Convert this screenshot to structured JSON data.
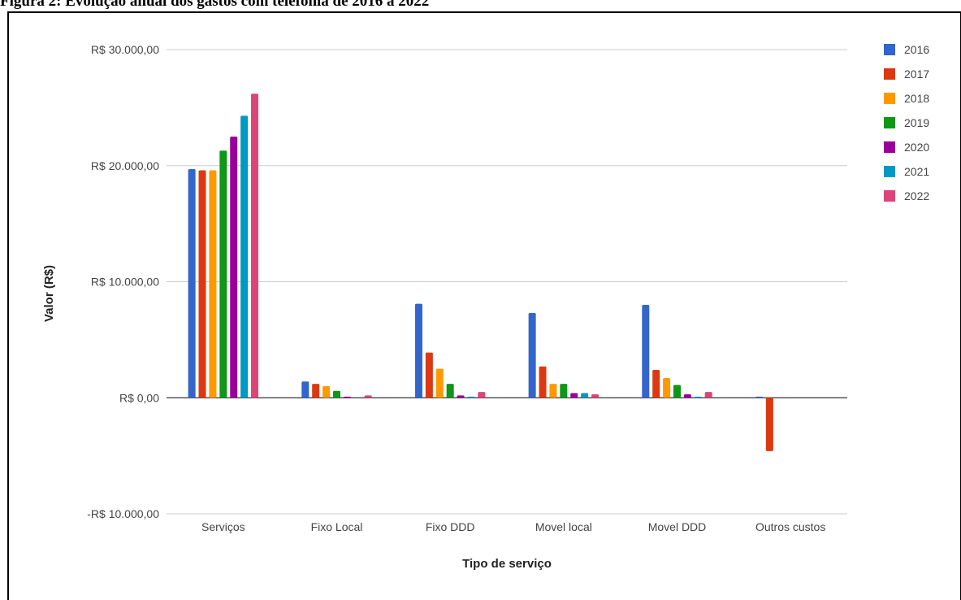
{
  "figure": {
    "title": "Figura 2: Evolução anual dos gastos com telefonia de 2016 a 2022"
  },
  "chart_data": {
    "type": "bar",
    "xlabel": "Tipo de serviço",
    "ylabel": "Valor (R$)",
    "ylim": [
      -10000,
      30000
    ],
    "yticks": [
      {
        "value": 30000,
        "label": "R$ 30.000,00"
      },
      {
        "value": 20000,
        "label": "R$ 20.000,00"
      },
      {
        "value": 10000,
        "label": "R$ 10.000,00"
      },
      {
        "value": 0,
        "label": "R$ 0,00"
      },
      {
        "value": -10000,
        "label": "-R$ 10.000,00"
      }
    ],
    "categories": [
      "Serviços",
      "Fixo Local",
      "Fixo DDD",
      "Movel local",
      "Movel DDD",
      "Outros custos"
    ],
    "series": [
      {
        "name": "2016",
        "color": "#3366cc",
        "values": [
          19700,
          1400,
          8100,
          7300,
          8000,
          100
        ]
      },
      {
        "name": "2017",
        "color": "#dc3912",
        "values": [
          19600,
          1200,
          3900,
          2700,
          2400,
          -4600
        ]
      },
      {
        "name": "2018",
        "color": "#ff9900",
        "values": [
          19600,
          1000,
          2500,
          1200,
          1700,
          0
        ]
      },
      {
        "name": "2019",
        "color": "#109618",
        "values": [
          21300,
          600,
          1200,
          1200,
          1100,
          0
        ]
      },
      {
        "name": "2020",
        "color": "#990099",
        "values": [
          22500,
          100,
          200,
          400,
          300,
          0
        ]
      },
      {
        "name": "2021",
        "color": "#0099c6",
        "values": [
          24300,
          0,
          100,
          400,
          100,
          0
        ]
      },
      {
        "name": "2022",
        "color": "#dd4477",
        "values": [
          26200,
          200,
          500,
          300,
          500,
          0
        ]
      }
    ],
    "grid": true,
    "legend_position": "right"
  }
}
